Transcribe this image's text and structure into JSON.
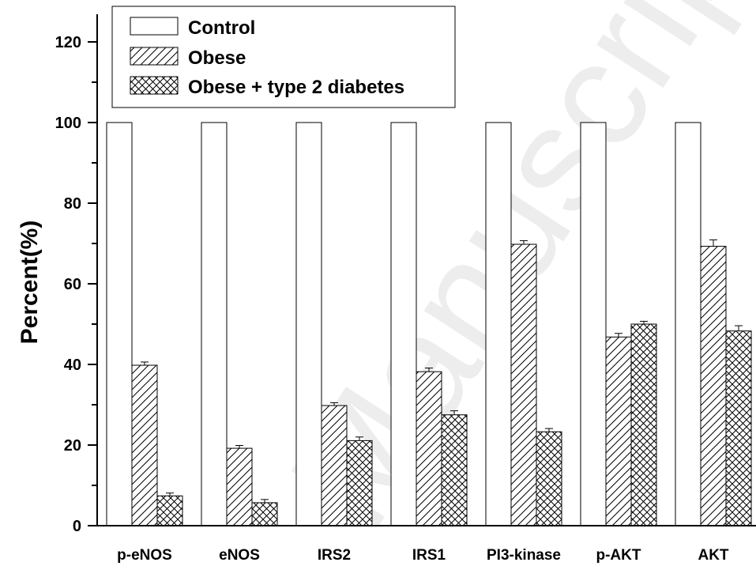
{
  "watermark": "Manuscript",
  "chart_data": {
    "type": "bar",
    "title": "",
    "xlabel": "",
    "ylabel": "Percent(%)",
    "ylim": [
      0,
      120
    ],
    "yticks": [
      0,
      20,
      40,
      60,
      80,
      100,
      120
    ],
    "categories": [
      "p-eNOS",
      "eNOS",
      "IRS2",
      "IRS1",
      "PI3-kinase",
      "p-AKT",
      "AKT"
    ],
    "series": [
      {
        "name": "Control",
        "pattern": "none",
        "values": [
          100,
          100,
          100,
          100,
          100,
          100,
          100
        ],
        "errors": [
          0,
          0,
          0,
          0,
          0,
          0,
          0
        ]
      },
      {
        "name": "Obese",
        "pattern": "diagonal-hatch",
        "values": [
          39.8,
          19.2,
          29.8,
          38.2,
          69.8,
          46.8,
          69.3
        ],
        "errors": [
          0.8,
          0.7,
          0.7,
          0.9,
          0.9,
          0.9,
          1.6
        ]
      },
      {
        "name": "Obese + type 2 diabetes",
        "pattern": "cross-hatch",
        "values": [
          7.4,
          5.7,
          21.1,
          27.5,
          23.3,
          50.0,
          48.3
        ],
        "errors": [
          0.7,
          0.8,
          0.9,
          1.0,
          0.8,
          0.7,
          1.3
        ]
      }
    ],
    "legend": {
      "position": "top-left"
    },
    "grid": false,
    "colors": {
      "fill": "#ffffff",
      "stroke": "#000000"
    }
  }
}
